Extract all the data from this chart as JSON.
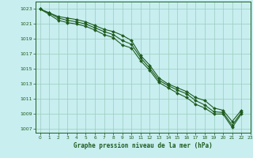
{
  "xlabel": "Graphe pression niveau de la mer (hPa)",
  "xlim": [
    -0.5,
    23
  ],
  "ylim": [
    1006.5,
    1024.0
  ],
  "yticks": [
    1007,
    1009,
    1011,
    1013,
    1015,
    1017,
    1019,
    1021,
    1023
  ],
  "xticks": [
    0,
    1,
    2,
    3,
    4,
    5,
    6,
    7,
    8,
    9,
    10,
    11,
    12,
    13,
    14,
    15,
    16,
    17,
    18,
    19,
    20,
    21,
    22,
    23
  ],
  "bg_color": "#c8eef0",
  "grid_color": "#99ccbb",
  "line_color": "#1e5c1e",
  "line1_y": [
    1023.0,
    1022.5,
    1022.0,
    1021.8,
    1021.6,
    1021.3,
    1020.8,
    1020.3,
    1020.0,
    1019.5,
    1018.8,
    1016.8,
    1015.5,
    1013.8,
    1013.0,
    1012.5,
    1012.0,
    1011.2,
    1010.8,
    1009.8,
    1009.5,
    1008.0,
    1009.5,
    null
  ],
  "line2_y": [
    1023.0,
    1022.5,
    1021.8,
    1021.5,
    1021.3,
    1021.0,
    1020.5,
    1020.0,
    1019.6,
    1018.8,
    1018.3,
    1016.5,
    1015.1,
    1013.5,
    1012.8,
    1012.2,
    1011.7,
    1010.8,
    1010.2,
    1009.3,
    1009.2,
    1007.5,
    1009.2,
    null
  ],
  "line3_y": [
    1023.0,
    1022.3,
    1021.5,
    1021.2,
    1021.0,
    1020.7,
    1020.2,
    1019.6,
    1019.2,
    1018.2,
    1017.8,
    1016.1,
    1014.8,
    1013.2,
    1012.5,
    1011.8,
    1011.2,
    1010.3,
    1009.8,
    1009.0,
    1009.0,
    1007.2,
    1009.0,
    null
  ]
}
